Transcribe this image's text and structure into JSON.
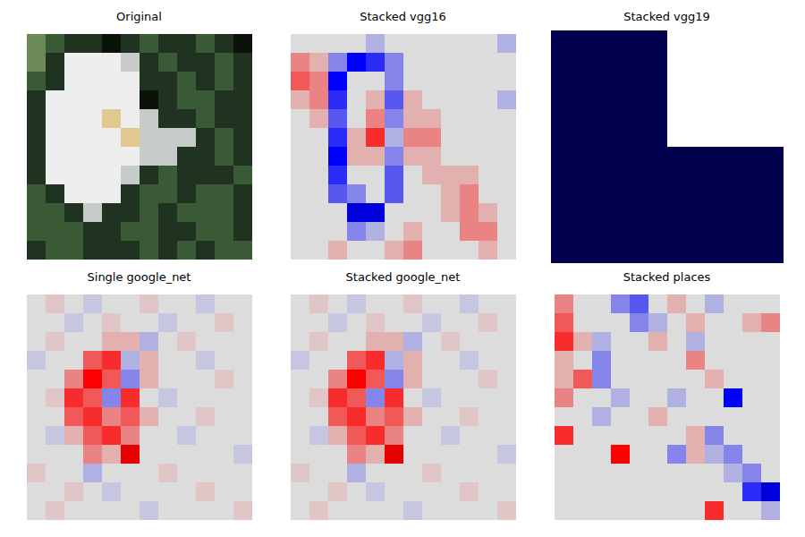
{
  "chart_data": [
    {
      "type": "image",
      "title": "Original",
      "tick_labels": false,
      "pixels": [
        [
          "#6b8a55",
          "#3a5a35",
          "#1f3320",
          "#1f3320",
          "#0b120a",
          "#1f3320",
          "#3a5a35",
          "#1f3320",
          "#1f3320",
          "#3a5a35",
          "#1f3320",
          "#0b120a"
        ],
        [
          "#6b8a55",
          "#1f3320",
          "#eeeeee",
          "#eeeeee",
          "#eeeeee",
          "#c8ccc8",
          "#1f3320",
          "#3a5a35",
          "#1f3320",
          "#1f3320",
          "#3a5a35",
          "#1f3320"
        ],
        [
          "#3a5a35",
          "#1f3320",
          "#eeeeee",
          "#eeeeee",
          "#eeeeee",
          "#eeeeee",
          "#1f3320",
          "#1f3320",
          "#3a5a35",
          "#1f3320",
          "#3a5a35",
          "#1f3320"
        ],
        [
          "#1f3320",
          "#eeeeee",
          "#eeeeee",
          "#eeeeee",
          "#eeeeee",
          "#eeeeee",
          "#0b120a",
          "#1f3320",
          "#3a5a35",
          "#3a5a35",
          "#1f3320",
          "#1f3320"
        ],
        [
          "#1f3320",
          "#eeeeee",
          "#eeeeee",
          "#eeeeee",
          "#e0c890",
          "#eeeeee",
          "#c8ccc8",
          "#1f3320",
          "#1f3320",
          "#3a5a35",
          "#1f3320",
          "#1f3320"
        ],
        [
          "#1f3320",
          "#eeeeee",
          "#eeeeee",
          "#eeeeee",
          "#eeeeee",
          "#e0c890",
          "#c8ccc8",
          "#c8ccc8",
          "#c8ccc8",
          "#1f3320",
          "#3a5a35",
          "#1f3320"
        ],
        [
          "#1f3320",
          "#eeeeee",
          "#eeeeee",
          "#eeeeee",
          "#eeeeee",
          "#eeeeee",
          "#c8ccc8",
          "#c8ccc8",
          "#1f3320",
          "#1f3320",
          "#3a5a35",
          "#1f3320"
        ],
        [
          "#1f3320",
          "#eeeeee",
          "#eeeeee",
          "#eeeeee",
          "#eeeeee",
          "#c8ccc8",
          "#1f3320",
          "#3a5a35",
          "#1f3320",
          "#1f3320",
          "#1f3320",
          "#3a5a35"
        ],
        [
          "#3a5a35",
          "#1f3320",
          "#eeeeee",
          "#eeeeee",
          "#eeeeee",
          "#1f3320",
          "#3a5a35",
          "#3a5a35",
          "#1f3320",
          "#3a5a35",
          "#3a5a35",
          "#1f3320"
        ],
        [
          "#3a5a35",
          "#3a5a35",
          "#1f3320",
          "#c8ccc8",
          "#1f3320",
          "#1f3320",
          "#3a5a35",
          "#1f3320",
          "#3a5a35",
          "#3a5a35",
          "#3a5a35",
          "#1f3320"
        ],
        [
          "#3a5a35",
          "#3a5a35",
          "#3a5a35",
          "#1f3320",
          "#1f3320",
          "#3a5a35",
          "#3a5a35",
          "#1f3320",
          "#1f3320",
          "#3a5a35",
          "#3a5a35",
          "#1f3320"
        ],
        [
          "#1f3320",
          "#3a5a35",
          "#3a5a35",
          "#1f3320",
          "#1f3320",
          "#1f3320",
          "#3a5a35",
          "#1f3320",
          "#3a5a35",
          "#1f3320",
          "#3a5a35",
          "#3a5a35"
        ]
      ]
    },
    {
      "type": "heatmap",
      "title": "Stacked vgg16",
      "tick_labels": false,
      "value_range": [
        -1,
        1
      ],
      "cells": [
        [
          0,
          0,
          0,
          0,
          -0.1,
          0,
          0,
          0,
          0,
          0,
          0,
          -0.1
        ],
        [
          0.2,
          0.1,
          -0.2,
          -0.5,
          -0.4,
          -0.2,
          0,
          0,
          0,
          0,
          0,
          0
        ],
        [
          0.3,
          0.2,
          -0.5,
          0,
          0,
          -0.2,
          0,
          0,
          0,
          0,
          0,
          0
        ],
        [
          0.1,
          0.2,
          -0.4,
          0,
          0.1,
          -0.3,
          0.1,
          0,
          0,
          0,
          0,
          -0.1
        ],
        [
          0,
          0.1,
          -0.3,
          0,
          0.2,
          -0.2,
          0.1,
          0.1,
          0,
          0,
          0,
          0
        ],
        [
          0,
          0,
          -0.4,
          0.1,
          0.4,
          -0.1,
          0.2,
          0.2,
          0,
          0,
          0,
          0
        ],
        [
          0,
          0,
          -0.5,
          0.1,
          0.1,
          -0.2,
          0.1,
          0.1,
          0,
          0,
          0,
          0
        ],
        [
          0,
          0,
          -0.4,
          0,
          0,
          -0.3,
          0,
          0.1,
          0.1,
          0.1,
          0,
          0
        ],
        [
          0,
          0,
          -0.3,
          -0.2,
          0,
          -0.3,
          0,
          0,
          0.1,
          0.2,
          0,
          0
        ],
        [
          0,
          0,
          0,
          -0.6,
          -0.6,
          0,
          0,
          0,
          0.1,
          0.2,
          0.1,
          0
        ],
        [
          0,
          0,
          0,
          -0.2,
          -0.1,
          0,
          0.1,
          0,
          0,
          0.2,
          0.2,
          0
        ],
        [
          0,
          0,
          0.1,
          0,
          0,
          0.1,
          0.2,
          0,
          0,
          0,
          0.1,
          0
        ]
      ]
    },
    {
      "type": "heatmap",
      "title": "Stacked vgg19",
      "tick_labels": false,
      "value_range": [
        -1,
        1
      ],
      "cells": [
        [
          -1,
          null
        ],
        [
          -1,
          -1
        ]
      ]
    },
    {
      "type": "heatmap",
      "title": "Single google_net",
      "tick_labels": false,
      "value_range": [
        -1,
        1
      ],
      "cells": [
        [
          0,
          0.05,
          0,
          -0.05,
          0,
          0,
          0.05,
          0,
          0,
          -0.05,
          0,
          0
        ],
        [
          0,
          0,
          -0.05,
          0,
          0.05,
          0,
          0,
          -0.05,
          0,
          0,
          0.05,
          0
        ],
        [
          0,
          0.05,
          0,
          0,
          0.1,
          0.1,
          -0.1,
          0,
          0.05,
          0,
          0,
          0
        ],
        [
          -0.05,
          0,
          0,
          0.3,
          0.4,
          -0.1,
          0.1,
          0,
          0,
          -0.05,
          0,
          0
        ],
        [
          0,
          0,
          0.2,
          0.5,
          0.3,
          -0.2,
          0.1,
          0,
          0,
          0,
          0.05,
          0
        ],
        [
          0,
          0.05,
          0.4,
          0.3,
          -0.2,
          0.4,
          0,
          -0.05,
          0,
          0,
          0,
          0
        ],
        [
          0,
          0,
          0.3,
          0.4,
          0.2,
          0.3,
          0.1,
          0,
          0,
          0.05,
          0,
          0
        ],
        [
          0,
          -0.05,
          0.1,
          0.3,
          0.4,
          0.2,
          0,
          0,
          -0.05,
          0,
          0,
          0
        ],
        [
          0,
          0,
          0,
          0.2,
          0.1,
          0.6,
          0,
          0,
          0,
          0,
          0,
          -0.05
        ],
        [
          0.05,
          0,
          0,
          -0.1,
          0,
          0,
          0,
          0.05,
          0,
          0,
          0,
          0
        ],
        [
          0,
          0,
          0.05,
          0,
          -0.05,
          0,
          0,
          0,
          0,
          0.05,
          0,
          0
        ],
        [
          0,
          0.05,
          0,
          0,
          0,
          0,
          -0.05,
          0,
          0,
          0,
          0,
          0.05
        ]
      ]
    },
    {
      "type": "heatmap",
      "title": "Stacked google_net",
      "tick_labels": false,
      "value_range": [
        -1,
        1
      ],
      "cells": [
        [
          0,
          0.05,
          0,
          -0.05,
          0,
          0,
          0.05,
          0,
          0,
          -0.05,
          0,
          0
        ],
        [
          0,
          0,
          -0.05,
          0,
          0.05,
          0,
          0,
          -0.05,
          0,
          0,
          0.05,
          0
        ],
        [
          0,
          0.05,
          0,
          0,
          0.1,
          0.1,
          -0.1,
          0,
          0.05,
          0,
          0,
          0
        ],
        [
          -0.05,
          0,
          0,
          0.3,
          0.4,
          -0.1,
          0.1,
          0,
          0,
          -0.05,
          0,
          0
        ],
        [
          0,
          0,
          0.2,
          0.5,
          0.3,
          -0.2,
          0.1,
          0,
          0,
          0,
          0.05,
          0
        ],
        [
          0,
          0.05,
          0.4,
          0.3,
          -0.2,
          0.4,
          0,
          -0.05,
          0,
          0,
          0,
          0
        ],
        [
          0,
          0,
          0.3,
          0.4,
          0.2,
          0.3,
          0.1,
          0,
          0,
          0.05,
          0,
          0
        ],
        [
          0,
          -0.05,
          0.1,
          0.3,
          0.4,
          0.2,
          0,
          0,
          -0.05,
          0,
          0,
          0
        ],
        [
          0,
          0,
          0,
          0.2,
          0.1,
          0.6,
          0,
          0,
          0,
          0,
          0,
          -0.05
        ],
        [
          0.05,
          0,
          0,
          -0.1,
          0,
          0,
          0,
          0.05,
          0,
          0,
          0,
          0
        ],
        [
          0,
          0,
          0.05,
          0,
          -0.05,
          0,
          0,
          0,
          0,
          0.05,
          0,
          0
        ],
        [
          0,
          0.05,
          0,
          0,
          0,
          0,
          -0.05,
          0,
          0,
          0,
          0,
          0.05
        ]
      ]
    },
    {
      "type": "heatmap",
      "title": "Stacked places",
      "tick_labels": false,
      "value_range": [
        -1,
        1
      ],
      "cells": [
        [
          0.2,
          0,
          0,
          -0.2,
          -0.3,
          0,
          0.1,
          0,
          -0.1,
          0,
          0,
          0
        ],
        [
          0.3,
          0,
          0,
          0,
          -0.2,
          -0.1,
          0,
          0.1,
          0,
          0,
          0.1,
          0.2
        ],
        [
          0.4,
          0.1,
          -0.1,
          0,
          0,
          0.1,
          0,
          -0.1,
          0,
          0,
          0,
          0
        ],
        [
          0.1,
          0,
          -0.2,
          0,
          0,
          0,
          0,
          0.2,
          0,
          0,
          0,
          0
        ],
        [
          0.1,
          0.3,
          -0.2,
          0,
          0,
          0,
          0,
          0,
          0.1,
          0,
          0,
          0
        ],
        [
          0.2,
          0,
          0,
          -0.1,
          0,
          0,
          -0.1,
          0,
          0,
          -0.5,
          0,
          0
        ],
        [
          0,
          0,
          -0.1,
          0,
          0,
          0.1,
          0,
          0,
          0,
          0,
          0,
          0
        ],
        [
          0.4,
          0,
          0,
          0,
          0,
          0,
          0,
          0.1,
          -0.2,
          0,
          0,
          0
        ],
        [
          0,
          0,
          0,
          0.5,
          0,
          0,
          -0.2,
          0.1,
          -0.1,
          -0.2,
          0,
          0
        ],
        [
          0,
          0,
          0,
          0,
          0,
          0,
          0,
          0,
          0,
          -0.1,
          -0.2,
          0
        ],
        [
          0,
          0,
          0,
          0,
          0,
          0,
          0,
          0,
          0,
          0,
          -0.4,
          -0.6
        ],
        [
          0,
          0,
          0,
          0,
          0,
          0,
          0,
          0,
          0.4,
          0,
          0,
          -0.1
        ]
      ]
    }
  ]
}
